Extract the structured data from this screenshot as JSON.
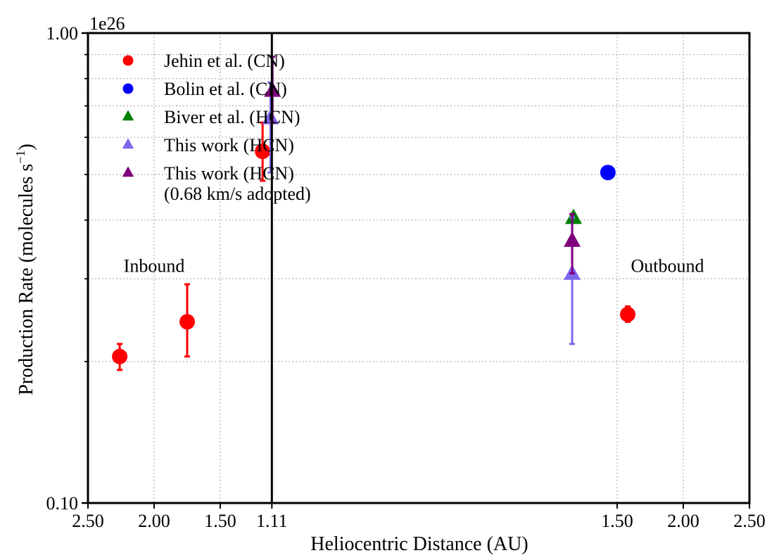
{
  "chart_data": {
    "type": "scatter",
    "title": "",
    "xlabel": "Heliocentric Distance (AU)",
    "ylabel_main": "Production Rate (molecules s",
    "ylabel_exp": "−1",
    "ylabel_close": ")",
    "y_scale": "log",
    "y_multiplier": "1e26",
    "ylim": [
      0.1,
      1.0
    ],
    "y_ticks": [
      {
        "value": 1.0,
        "label": "1.00"
      },
      {
        "value": 0.1,
        "label": "0.10"
      }
    ],
    "x_axis_note": "mirrored axis: left half inbound, right half outbound, centered at perihelion",
    "xlim": [
      -2.5,
      2.5
    ],
    "x_ticks": [
      {
        "value": -2.5,
        "label": "2.50"
      },
      {
        "value": -2.0,
        "label": "2.00"
      },
      {
        "value": -1.5,
        "label": "1.50"
      },
      {
        "value": -1.11,
        "label": "1.11"
      },
      {
        "value": 1.5,
        "label": "1.50"
      },
      {
        "value": 2.0,
        "label": "2.00"
      },
      {
        "value": 2.5,
        "label": "2.50"
      }
    ],
    "x_gridlines": [
      -2.5,
      -2.0,
      -1.5,
      -1.11,
      1.5,
      2.0,
      2.5
    ],
    "y_gridlines": [
      0.2,
      0.3,
      0.4,
      0.5,
      0.6,
      0.7,
      0.8,
      0.9,
      1.0
    ],
    "grid": true,
    "perihelion_line": {
      "x": -1.11
    },
    "annotations": [
      {
        "text": "Inbound",
        "x": -2.0,
        "y": 0.32
      },
      {
        "text": "Outbound",
        "x": 1.88,
        "y": 0.32
      }
    ],
    "legend_position": "top-left",
    "series": [
      {
        "name": "Jehin et al. (CN)",
        "marker": "circle",
        "color": "#ff0000",
        "points": [
          {
            "x": -2.26,
            "y": 0.205,
            "ylo": 0.192,
            "yhi": 0.218
          },
          {
            "x": -1.75,
            "y": 0.243,
            "ylo": 0.205,
            "yhi": 0.292
          },
          {
            "x": -1.18,
            "y": 0.56,
            "ylo": 0.485,
            "yhi": 0.645
          },
          {
            "x": 1.58,
            "y": 0.252,
            "ylo": 0.243,
            "yhi": 0.262
          }
        ]
      },
      {
        "name": "Bolin et al. (CN)",
        "marker": "circle",
        "color": "#0000ff",
        "points": [
          {
            "x": 1.43,
            "y": 0.505
          }
        ]
      },
      {
        "name": "Biver et al. (HCN)",
        "marker": "triangle",
        "color": "#008000",
        "points": [
          {
            "x": 1.17,
            "y": 0.405
          }
        ]
      },
      {
        "name": "This work (HCN)",
        "marker": "triangle",
        "color": "#7b68ee",
        "points": [
          {
            "x": -1.12,
            "y": 0.66,
            "ylo": 0.505,
            "yhi": 0.785
          },
          {
            "x": 1.16,
            "y": 0.308,
            "ylo": 0.218,
            "yhi": 0.405
          }
        ]
      },
      {
        "name": "This work (HCN)\n(0.68 km/s adopted)",
        "marker": "triangle",
        "color": "#800080",
        "points": [
          {
            "x": -1.105,
            "y": 0.755,
            "ylo": 0.645,
            "yhi": 0.89
          },
          {
            "x": 1.16,
            "y": 0.362,
            "ylo": 0.308,
            "yhi": 0.412
          }
        ]
      }
    ]
  }
}
